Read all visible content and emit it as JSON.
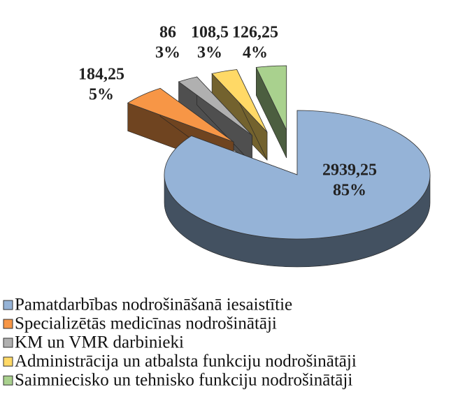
{
  "chart_data": {
    "type": "pie",
    "categories": [
      "Pamatdarbības nodrošināšanā iesaistītie",
      "Specializētās medicīnas nodrošinātāji",
      "KM un VMR darbinieki",
      "Administrācija un atbalsta funkciju nodrošinātāji",
      "Saimniecisko un tehnisko funkciju nodrošinātāji"
    ],
    "values": [
      2939.25,
      184.25,
      86,
      108.5,
      126.25
    ],
    "value_labels": [
      "2939,25",
      "184,25",
      "86",
      "108,5",
      "126,25"
    ],
    "percentages": [
      85,
      5,
      3,
      3,
      4
    ],
    "percentage_labels": [
      "85%",
      "5%",
      "3%",
      "3%",
      "4%"
    ],
    "colors": [
      "#95b3d7",
      "#f79646",
      "#b0b0b0",
      "#ffd966",
      "#a9d18e"
    ]
  }
}
